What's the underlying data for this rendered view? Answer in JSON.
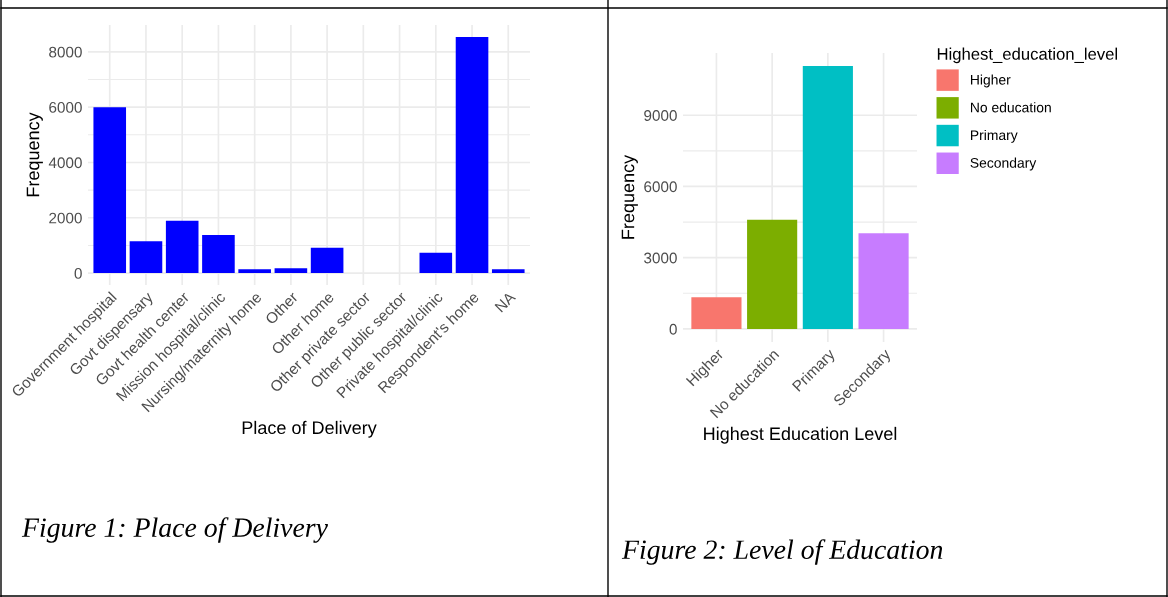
{
  "chart_data": [
    {
      "type": "bar",
      "xlabel": "Place of Delivery",
      "ylabel": "Frequency",
      "categories": [
        "Government hospital",
        "Govt dispensary",
        "Govt health center",
        "Mission hospital/clinic",
        "Nursing/maternity home",
        "Other",
        "Other home",
        "Other private sector",
        "Other public sector",
        "Private hospital/clinic",
        "Respondent's home",
        "NA"
      ],
      "values": [
        6000,
        1150,
        1890,
        1380,
        140,
        180,
        920,
        0,
        0,
        740,
        8540,
        140
      ],
      "color": "#0000ff",
      "ylim": [
        -430,
        8970
      ],
      "yticks": [
        0,
        2000,
        4000,
        6000,
        8000
      ],
      "grid": true,
      "annotations": [
        "Figure 1: Place of Delivery"
      ]
    },
    {
      "type": "bar",
      "xlabel": "Highest Education Level",
      "ylabel": "Frequency",
      "legend_title": "Highest_education_level",
      "categories": [
        "Higher",
        "No education",
        "Primary",
        "Secondary"
      ],
      "series": [
        {
          "name": "Higher",
          "color": "#f8766d",
          "values": [
            1330,
            null,
            null,
            null
          ]
        },
        {
          "name": "No education",
          "color": "#7cae00",
          "values": [
            null,
            4600,
            null,
            null
          ]
        },
        {
          "name": "Primary",
          "color": "#00bfc4",
          "values": [
            null,
            null,
            11070,
            null
          ]
        },
        {
          "name": "Secondary",
          "color": "#c77cff",
          "values": [
            null,
            null,
            null,
            4030
          ]
        }
      ],
      "ylim": [
        -550,
        11620
      ],
      "yticks": [
        0,
        3000,
        6000,
        9000
      ],
      "grid": true,
      "legend": "right",
      "annotations": [
        "Figure 2: Level of Education"
      ]
    }
  ]
}
